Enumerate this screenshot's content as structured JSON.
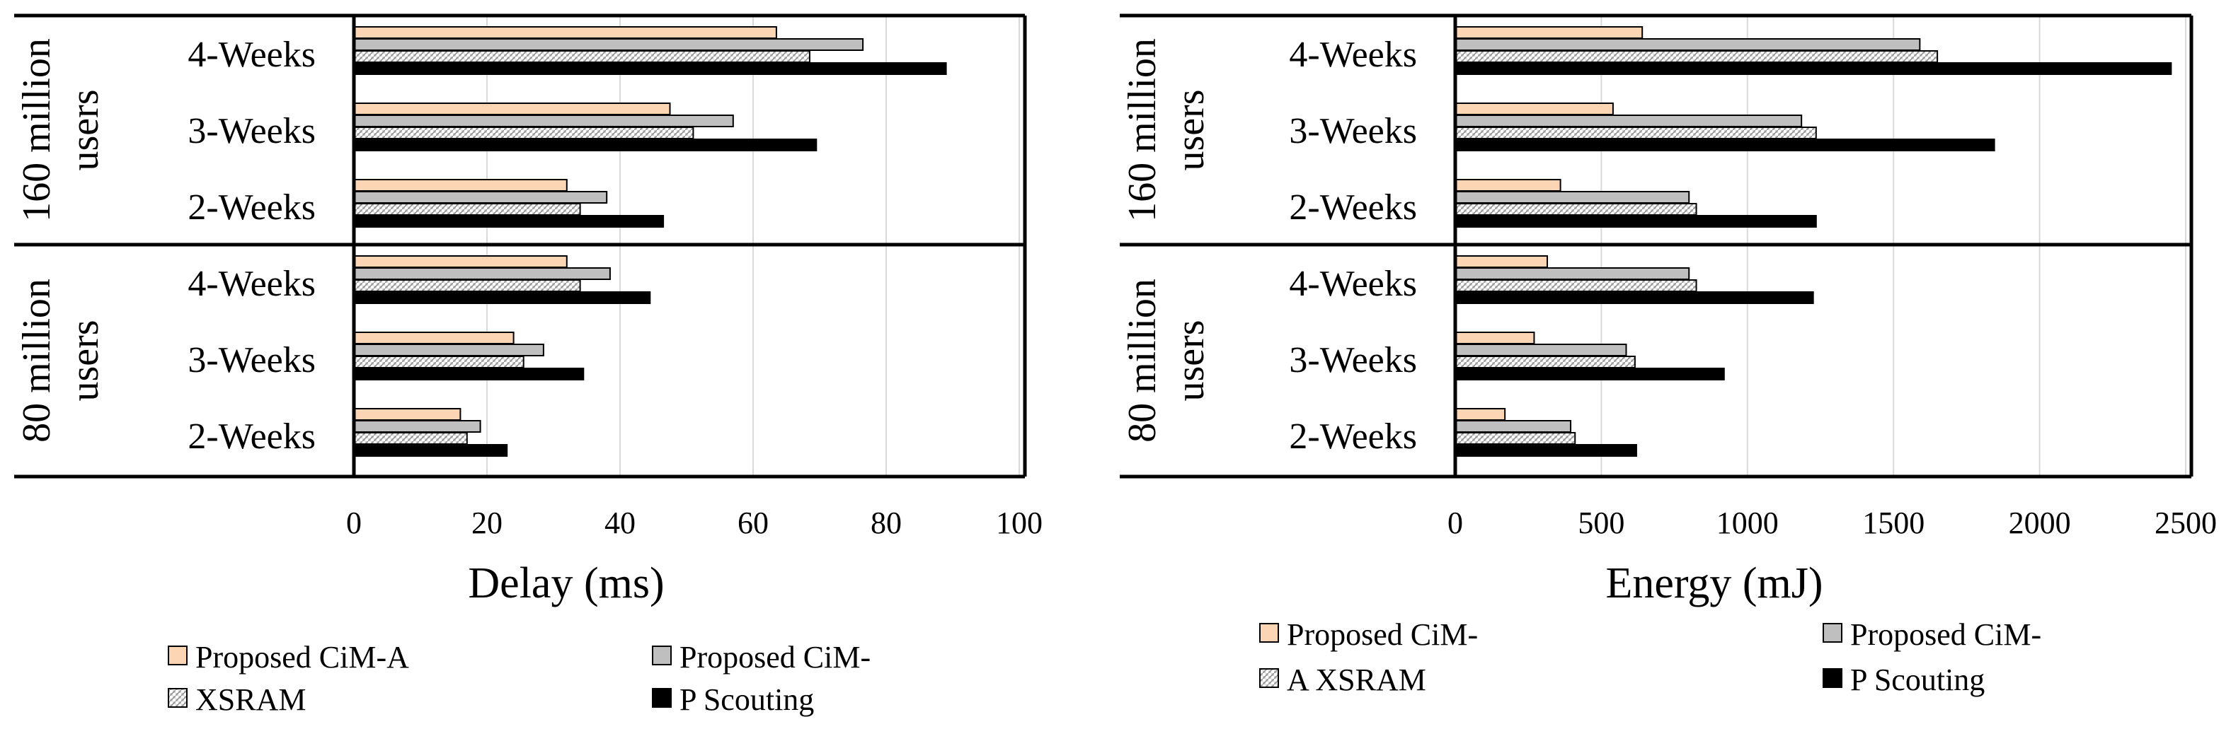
{
  "colors": {
    "ciM_A": "#fcd5b4",
    "ciM_P": "#bfbfbf",
    "xsram": "#d0d0d0",
    "scouting": "#000000",
    "grid": "#d9d9d9",
    "frame": "#000000"
  },
  "chart_data": [
    {
      "type": "bar",
      "orientation": "horizontal",
      "xlabel": "Delay (ms)",
      "xlim": [
        0,
        100
      ],
      "xticks": [
        "0",
        "20",
        "40",
        "60",
        "80",
        "100"
      ],
      "grid": true,
      "groups": [
        {
          "label": "160 million users",
          "line1": "160 million",
          "line2": "users",
          "categories": [
            "4-Weeks",
            "3-Weeks",
            "2-Weeks"
          ]
        },
        {
          "label": "80 million users",
          "line1": "80 million",
          "line2": "users",
          "categories": [
            "4-Weeks",
            "3-Weeks",
            "2-Weeks"
          ]
        }
      ],
      "series": [
        {
          "key": "ciM_A",
          "name": "Proposed CiM-A",
          "values": [
            63.5,
            47.5,
            32,
            32,
            24,
            16
          ]
        },
        {
          "key": "ciM_P",
          "name": "Proposed CiM-P",
          "values": [
            76.5,
            57,
            38,
            38.5,
            28.5,
            19
          ]
        },
        {
          "key": "xsram",
          "name": "XSRAM",
          "values": [
            68.5,
            51,
            34,
            34,
            25.5,
            17
          ]
        },
        {
          "key": "scouting",
          "name": "Scouting",
          "values": [
            89,
            69.5,
            46.5,
            44.5,
            34.5,
            23
          ]
        }
      ],
      "legend": {
        "position": "bottom",
        "items": [
          "Proposed CiM-A",
          "Proposed CiM-",
          "XSRAM",
          "P Scouting"
        ]
      }
    },
    {
      "type": "bar",
      "orientation": "horizontal",
      "xlabel": "Energy (mJ)",
      "xlim": [
        0,
        2500
      ],
      "xticks": [
        "0",
        "500",
        "1000",
        "1500",
        "2000",
        "2500"
      ],
      "grid": true,
      "groups": [
        {
          "label": "160 million users",
          "line1": "160 million",
          "line2": "users",
          "categories": [
            "4-Weeks",
            "3-Weeks",
            "2-Weeks"
          ]
        },
        {
          "label": "80 million users",
          "line1": "80 million",
          "line2": "users",
          "categories": [
            "4-Weeks",
            "3-Weeks",
            "2-Weeks"
          ]
        }
      ],
      "series": [
        {
          "key": "ciM_A",
          "name": "Proposed CiM-A",
          "values": [
            640,
            540,
            360,
            315,
            270,
            170
          ]
        },
        {
          "key": "ciM_P",
          "name": "Proposed CiM-P",
          "values": [
            1590,
            1185,
            800,
            800,
            585,
            395
          ]
        },
        {
          "key": "xsram",
          "name": "XSRAM",
          "values": [
            1650,
            1235,
            825,
            825,
            615,
            410
          ]
        },
        {
          "key": "scouting",
          "name": "Scouting",
          "values": [
            2450,
            1845,
            1235,
            1225,
            920,
            620
          ]
        }
      ],
      "legend": {
        "position": "bottom",
        "items": [
          "Proposed CiM-",
          "Proposed CiM-",
          "A XSRAM",
          "P Scouting"
        ]
      }
    }
  ]
}
